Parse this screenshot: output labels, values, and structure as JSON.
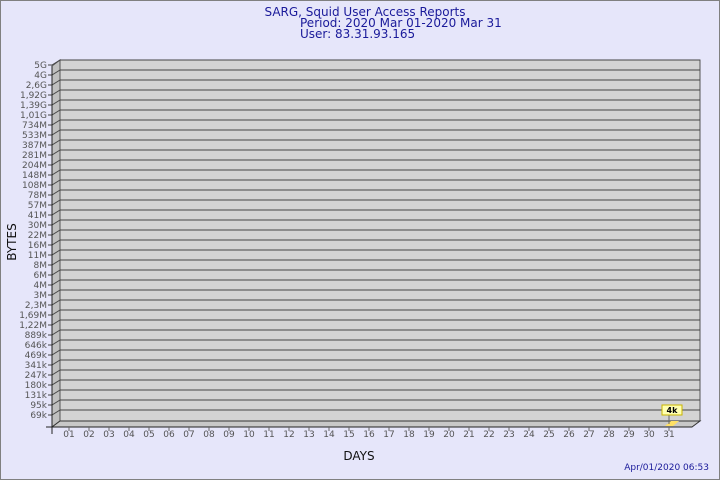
{
  "chart_data": {
    "type": "bar",
    "title": "SARG, Squid User Access Reports",
    "subtitle": [
      "Period: 2020 Mar 01-2020 Mar 31",
      "User: 83.31.93.165"
    ],
    "xlabel": "DAYS",
    "ylabel": "BYTES",
    "y_scale": "log",
    "y_tick_labels": [
      "5G",
      "4G",
      "2,6G",
      "1,92G",
      "1,39G",
      "1,01G",
      "734M",
      "533M",
      "387M",
      "281M",
      "204M",
      "148M",
      "108M",
      "78M",
      "57M",
      "41M",
      "30M",
      "22M",
      "16M",
      "11M",
      "8M",
      "6M",
      "4M",
      "3M",
      "2,3M",
      "1,69M",
      "1,22M",
      "889k",
      "646k",
      "469k",
      "341k",
      "247k",
      "180k",
      "131k",
      "95k",
      "69k"
    ],
    "categories": [
      "01",
      "02",
      "03",
      "04",
      "05",
      "06",
      "07",
      "08",
      "09",
      "10",
      "11",
      "12",
      "13",
      "14",
      "15",
      "16",
      "17",
      "18",
      "19",
      "20",
      "21",
      "22",
      "23",
      "24",
      "25",
      "26",
      "27",
      "28",
      "29",
      "30",
      "31"
    ],
    "series": [
      {
        "values": [
          null,
          null,
          null,
          null,
          null,
          null,
          null,
          null,
          null,
          null,
          null,
          null,
          null,
          null,
          null,
          null,
          null,
          null,
          null,
          null,
          null,
          null,
          null,
          null,
          null,
          null,
          null,
          null,
          null,
          null,
          4000
        ],
        "data_labels": {
          "31": "4k"
        }
      }
    ],
    "grid": true,
    "colors": {
      "background": "#e6e6fa",
      "plot": "#d3d3d3",
      "bar": "#ffe066",
      "title": "#1a1a9a"
    }
  },
  "timestamp": "Apr/01/2020 06:53"
}
